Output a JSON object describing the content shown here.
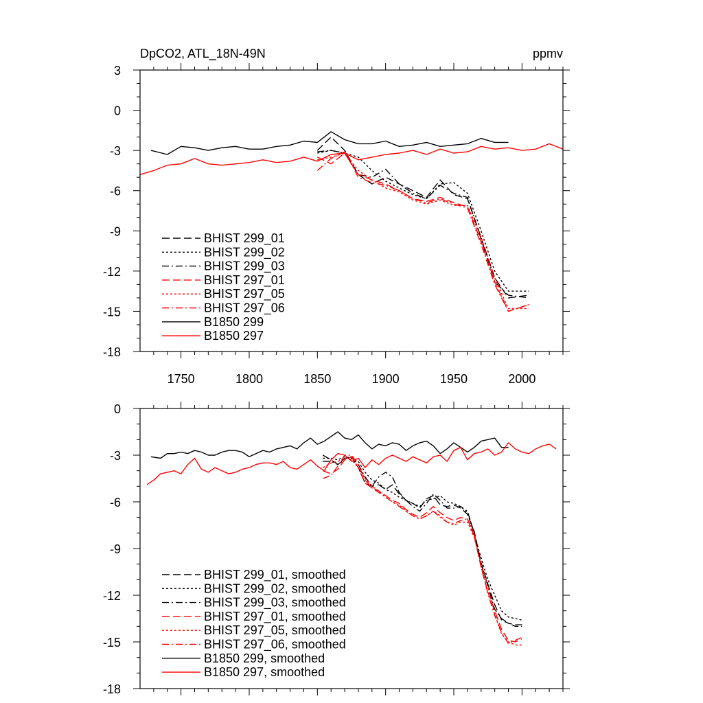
{
  "figure": {
    "title_left": "DpCO2, ATL_18N-49N",
    "title_right": "ppmv",
    "colors": {
      "black": "#000000",
      "red": "#ff0000"
    }
  },
  "chart_data": [
    {
      "type": "line",
      "panel": "top",
      "xlim": [
        1720,
        2030
      ],
      "ylim": [
        -18,
        3
      ],
      "yticks": [
        "3",
        "0",
        "-3",
        "-6",
        "-9",
        "-12",
        "-15",
        "-18"
      ],
      "xticks": [
        "1750",
        "1800",
        "1850",
        "1900",
        "1950",
        "2000"
      ],
      "legend_position": "lower-left",
      "series": [
        {
          "name": "BHIST 299_01",
          "color": "#000000",
          "dash": "dashed",
          "x": [
            1850,
            1860,
            1870,
            1880,
            1890,
            1900,
            1910,
            1920,
            1930,
            1940,
            1950,
            1960,
            1970,
            1980,
            1990,
            2005
          ],
          "y": [
            -3,
            -2,
            -3,
            -4.8,
            -5.5,
            -5,
            -5.5,
            -6,
            -6.5,
            -5.2,
            -6.3,
            -6.6,
            -9.5,
            -12.5,
            -14,
            -13.8
          ]
        },
        {
          "name": "BHIST 299_02",
          "color": "#000000",
          "dash": "dotted",
          "x": [
            1850,
            1860,
            1870,
            1880,
            1890,
            1900,
            1910,
            1920,
            1930,
            1940,
            1950,
            1960,
            1970,
            1980,
            1990,
            2005
          ],
          "y": [
            -3.2,
            -3,
            -3.2,
            -3.5,
            -4.5,
            -5.3,
            -5.8,
            -6.3,
            -6.6,
            -5.5,
            -5.4,
            -6.2,
            -9,
            -12,
            -13.5,
            -13.5
          ]
        },
        {
          "name": "BHIST 299_03",
          "color": "#000000",
          "dash": "dashdot",
          "x": [
            1850,
            1860,
            1870,
            1880,
            1890,
            1900,
            1910,
            1920,
            1930,
            1940,
            1950,
            1960,
            1970,
            1980,
            1990,
            2005
          ],
          "y": [
            -3.1,
            -3,
            -3.2,
            -4.8,
            -5,
            -4.4,
            -5.5,
            -6.2,
            -6.6,
            -5.6,
            -6.2,
            -6.5,
            -9.6,
            -12.8,
            -13.8,
            -14
          ]
        },
        {
          "name": "BHIST 297_01",
          "color": "#ff0000",
          "dash": "dashed",
          "x": [
            1850,
            1860,
            1870,
            1880,
            1890,
            1900,
            1910,
            1920,
            1930,
            1940,
            1950,
            1960,
            1970,
            1980,
            1990,
            2005
          ],
          "y": [
            -3.5,
            -4,
            -3.2,
            -4.8,
            -5.2,
            -5.5,
            -6,
            -6.6,
            -6.8,
            -6.5,
            -6.9,
            -7.2,
            -9.8,
            -12.8,
            -15,
            -14.5
          ]
        },
        {
          "name": "BHIST 297_05",
          "color": "#ff0000",
          "dash": "dotted",
          "x": [
            1850,
            1860,
            1870,
            1880,
            1890,
            1900,
            1910,
            1920,
            1930,
            1940,
            1950,
            1960,
            1970,
            1980,
            1990,
            2005
          ],
          "y": [
            -3.7,
            -3.5,
            -3.2,
            -4.5,
            -5.2,
            -5.8,
            -6.1,
            -6.7,
            -7,
            -6.7,
            -7.1,
            -7.1,
            -9.5,
            -12.5,
            -14.8,
            -14.8
          ]
        },
        {
          "name": "BHIST 297_06",
          "color": "#ff0000",
          "dash": "dashdot",
          "x": [
            1850,
            1860,
            1870,
            1880,
            1890,
            1900,
            1910,
            1920,
            1930,
            1940,
            1950,
            1960,
            1970,
            1980,
            1990,
            2005
          ],
          "y": [
            -4.5,
            -3.6,
            -3.1,
            -5,
            -5.4,
            -5.6,
            -6,
            -6.6,
            -6.9,
            -6.6,
            -7,
            -7.3,
            -10,
            -13,
            -15,
            -14.5
          ]
        },
        {
          "name": "B1850 299",
          "color": "#000000",
          "dash": "solid",
          "x": [
            1728,
            1740,
            1750,
            1760,
            1770,
            1780,
            1790,
            1800,
            1810,
            1820,
            1830,
            1840,
            1850,
            1860,
            1870,
            1880,
            1890,
            1900,
            1910,
            1920,
            1930,
            1940,
            1950,
            1960,
            1970,
            1980,
            1990
          ],
          "y": [
            -3,
            -3.3,
            -2.7,
            -2.8,
            -3,
            -2.8,
            -2.7,
            -2.9,
            -2.9,
            -2.7,
            -2.6,
            -2.3,
            -2.4,
            -1.6,
            -2.2,
            -2.5,
            -2.5,
            -2.3,
            -2.7,
            -2.6,
            -2.4,
            -2.7,
            -2.6,
            -2.5,
            -2.1,
            -2.4,
            -2.4
          ]
        },
        {
          "name": "B1850 297",
          "color": "#ff0000",
          "dash": "solid",
          "x": [
            1720,
            1730,
            1740,
            1750,
            1760,
            1770,
            1780,
            1790,
            1800,
            1810,
            1820,
            1830,
            1840,
            1850,
            1860,
            1870,
            1880,
            1890,
            1900,
            1910,
            1920,
            1930,
            1940,
            1950,
            1960,
            1970,
            1980,
            1990,
            2000,
            2010,
            2020,
            2030
          ],
          "y": [
            -4.8,
            -4.5,
            -4.1,
            -4,
            -3.6,
            -4,
            -4.1,
            -4,
            -3.9,
            -3.7,
            -3.9,
            -3.8,
            -3.5,
            -3.8,
            -3.3,
            -3.2,
            -3.7,
            -3.5,
            -3.3,
            -3.2,
            -3,
            -3.3,
            -2.9,
            -3.2,
            -3.1,
            -2.7,
            -2.9,
            -2.8,
            -3,
            -2.9,
            -2.5,
            -2.9
          ]
        }
      ]
    },
    {
      "type": "line",
      "panel": "bottom",
      "xlim": [
        1720,
        2030
      ],
      "ylim": [
        -18,
        0
      ],
      "yticks": [
        "0",
        "-3",
        "-6",
        "-9",
        "-12",
        "-15",
        "-18"
      ],
      "xticks": [],
      "legend_position": "lower-left",
      "series": [
        {
          "name": "BHIST 299_01, smoothed",
          "color": "#000000",
          "dash": "dashed",
          "x": [
            1854,
            1860,
            1865,
            1870,
            1875,
            1880,
            1885,
            1890,
            1895,
            1900,
            1905,
            1910,
            1915,
            1920,
            1925,
            1930,
            1935,
            1940,
            1945,
            1950,
            1955,
            1960,
            1965,
            1970,
            1975,
            1980,
            1985,
            1990,
            1995,
            2000
          ],
          "y": [
            -3,
            -3.3,
            -3.6,
            -3.2,
            -3.1,
            -3.8,
            -4.8,
            -5,
            -4.9,
            -5.2,
            -4.9,
            -5.5,
            -5.9,
            -6.1,
            -6.4,
            -5.8,
            -5.6,
            -6.2,
            -6.3,
            -6.2,
            -6.4,
            -6.8,
            -7.9,
            -9.9,
            -11.3,
            -12.6,
            -13.6,
            -13.8,
            -13.9,
            -13.9
          ]
        },
        {
          "name": "BHIST 299_02, smoothed",
          "color": "#000000",
          "dash": "dotted",
          "x": [
            1854,
            1860,
            1865,
            1870,
            1875,
            1880,
            1885,
            1890,
            1895,
            1900,
            1905,
            1910,
            1915,
            1920,
            1925,
            1930,
            1935,
            1940,
            1945,
            1950,
            1955,
            1960,
            1965,
            1970,
            1975,
            1980,
            1985,
            1990,
            1995,
            2000
          ],
          "y": [
            -3.2,
            -3.2,
            -3.3,
            -3.1,
            -3.2,
            -3.4,
            -4.1,
            -4.6,
            -4.8,
            -5.2,
            -5.4,
            -5.7,
            -5.9,
            -6.1,
            -6.3,
            -5.9,
            -5.8,
            -5.6,
            -6,
            -6.1,
            -6.3,
            -6.7,
            -8.1,
            -9.6,
            -11,
            -12,
            -13,
            -13.4,
            -13.5,
            -13.6
          ]
        },
        {
          "name": "BHIST 299_03, smoothed",
          "color": "#000000",
          "dash": "dashdot",
          "x": [
            1854,
            1860,
            1865,
            1870,
            1875,
            1880,
            1885,
            1890,
            1895,
            1900,
            1905,
            1910,
            1915,
            1920,
            1925,
            1930,
            1935,
            1940,
            1945,
            1950,
            1955,
            1960,
            1965,
            1970,
            1975,
            1980,
            1985,
            1990,
            1995,
            2000
          ],
          "y": [
            -3.4,
            -3.4,
            -3.6,
            -3.3,
            -3.1,
            -3.6,
            -4.4,
            -5,
            -4.4,
            -4.1,
            -4.4,
            -5.4,
            -5.9,
            -6.3,
            -6.6,
            -6.1,
            -5.5,
            -5.9,
            -6.4,
            -6.4,
            -6.3,
            -6.6,
            -8,
            -10,
            -11.4,
            -12.9,
            -13.5,
            -13.8,
            -14,
            -14
          ]
        },
        {
          "name": "BHIST 297_01, smoothed",
          "color": "#ff0000",
          "dash": "dashed",
          "x": [
            1854,
            1860,
            1865,
            1870,
            1875,
            1880,
            1885,
            1890,
            1895,
            1900,
            1905,
            1910,
            1915,
            1920,
            1925,
            1930,
            1935,
            1940,
            1945,
            1950,
            1955,
            1960,
            1965,
            1970,
            1975,
            1980,
            1985,
            1990,
            1995,
            2000
          ],
          "y": [
            -4,
            -4.2,
            -3.9,
            -3.3,
            -3.1,
            -3.8,
            -4.8,
            -5.1,
            -5.3,
            -5.6,
            -5.9,
            -6.1,
            -6.5,
            -6.8,
            -7,
            -6.7,
            -6.3,
            -6.7,
            -7,
            -7.2,
            -7,
            -7.1,
            -8.2,
            -10.2,
            -11.8,
            -13,
            -14.2,
            -14.9,
            -15,
            -14.8
          ]
        },
        {
          "name": "BHIST 297_05, smoothed",
          "color": "#ff0000",
          "dash": "dotted",
          "x": [
            1854,
            1860,
            1865,
            1870,
            1875,
            1880,
            1885,
            1890,
            1895,
            1900,
            1905,
            1910,
            1915,
            1920,
            1925,
            1930,
            1935,
            1940,
            1945,
            1950,
            1955,
            1960,
            1965,
            1970,
            1975,
            1980,
            1985,
            1990,
            1995,
            2000
          ],
          "y": [
            -3.8,
            -3.5,
            -3.4,
            -3.2,
            -3.3,
            -3.8,
            -4.5,
            -5,
            -5.3,
            -5.7,
            -6,
            -6.2,
            -6.6,
            -6.9,
            -7.1,
            -6.9,
            -6.6,
            -6.9,
            -7.3,
            -7.5,
            -7.3,
            -7.3,
            -8.3,
            -10,
            -11.5,
            -13.2,
            -14.5,
            -15,
            -15.2,
            -15.2
          ]
        },
        {
          "name": "BHIST 297_06, smoothed",
          "color": "#ff0000",
          "dash": "dashdot",
          "x": [
            1854,
            1860,
            1865,
            1870,
            1875,
            1880,
            1885,
            1890,
            1895,
            1900,
            1905,
            1910,
            1915,
            1920,
            1925,
            1930,
            1935,
            1940,
            1945,
            1950,
            1955,
            1960,
            1965,
            1970,
            1975,
            1980,
            1985,
            1990,
            1995,
            2000
          ],
          "y": [
            -4.5,
            -4.3,
            -3.7,
            -3,
            -3,
            -3.6,
            -4.6,
            -5.1,
            -5.4,
            -5.7,
            -6,
            -6.3,
            -6.6,
            -6.9,
            -7.1,
            -6.9,
            -6.6,
            -7,
            -7.3,
            -7.4,
            -7.2,
            -7.1,
            -8.1,
            -10.2,
            -11.9,
            -13.3,
            -14.4,
            -15.1,
            -14.9,
            -14.7
          ]
        },
        {
          "name": "B1850 299, smoothed",
          "color": "#000000",
          "dash": "solid",
          "x": [
            1728,
            1735,
            1740,
            1745,
            1750,
            1755,
            1760,
            1765,
            1770,
            1775,
            1780,
            1785,
            1790,
            1795,
            1800,
            1805,
            1810,
            1815,
            1820,
            1825,
            1830,
            1835,
            1840,
            1845,
            1850,
            1855,
            1860,
            1865,
            1870,
            1875,
            1880,
            1885,
            1890,
            1895,
            1900,
            1905,
            1910,
            1915,
            1920,
            1925,
            1930,
            1935,
            1940,
            1945,
            1950,
            1955,
            1960,
            1965,
            1970,
            1975,
            1980,
            1985,
            1990
          ],
          "y": [
            -3.1,
            -3.2,
            -2.9,
            -2.9,
            -2.8,
            -2.9,
            -2.7,
            -2.8,
            -3,
            -3,
            -2.8,
            -2.7,
            -2.7,
            -2.8,
            -3.1,
            -2.9,
            -2.7,
            -2.8,
            -2.6,
            -2.5,
            -2.4,
            -2.6,
            -2.2,
            -1.9,
            -2.3,
            -2.1,
            -1.8,
            -1.5,
            -1.9,
            -2,
            -1.7,
            -2.2,
            -2.6,
            -2.3,
            -2.4,
            -2.2,
            -2.3,
            -2.7,
            -2.4,
            -2.2,
            -2.1,
            -2.4,
            -2.9,
            -2.6,
            -2.2,
            -2.5,
            -2.8,
            -2.5,
            -2.1,
            -2.0,
            -1.9,
            -2.5,
            -2.5
          ]
        },
        {
          "name": "B1850 297, smoothed",
          "color": "#ff0000",
          "dash": "solid",
          "x": [
            1725,
            1730,
            1735,
            1740,
            1745,
            1750,
            1755,
            1760,
            1765,
            1770,
            1775,
            1780,
            1785,
            1790,
            1795,
            1800,
            1805,
            1810,
            1815,
            1820,
            1825,
            1830,
            1835,
            1840,
            1845,
            1850,
            1855,
            1860,
            1865,
            1870,
            1875,
            1880,
            1885,
            1890,
            1895,
            1900,
            1905,
            1910,
            1915,
            1920,
            1925,
            1930,
            1935,
            1940,
            1945,
            1950,
            1955,
            1960,
            1965,
            1970,
            1975,
            1980,
            1985,
            1990,
            1995,
            2000,
            2005,
            2010,
            2015,
            2020,
            2025
          ],
          "y": [
            -4.9,
            -4.6,
            -4.2,
            -4.1,
            -4,
            -4.2,
            -3.6,
            -3.2,
            -3.9,
            -4.1,
            -3.8,
            -4,
            -4.2,
            -4.1,
            -3.9,
            -3.8,
            -3.6,
            -3.5,
            -3.5,
            -3.6,
            -3.4,
            -3.8,
            -3.9,
            -3.6,
            -3.3,
            -3.7,
            -4,
            -3.3,
            -2.9,
            -3,
            -3.4,
            -3.2,
            -3.8,
            -3.3,
            -3.6,
            -3.2,
            -3.0,
            -3.2,
            -3.4,
            -3.1,
            -3.3,
            -3.5,
            -3.1,
            -3.0,
            -3.4,
            -2.7,
            -2.5,
            -3.3,
            -2.9,
            -2.8,
            -2.6,
            -3.0,
            -2.8,
            -2.2,
            -2.6,
            -2.8,
            -2.9,
            -2.6,
            -2.4,
            -2.3,
            -2.6
          ]
        }
      ]
    }
  ]
}
